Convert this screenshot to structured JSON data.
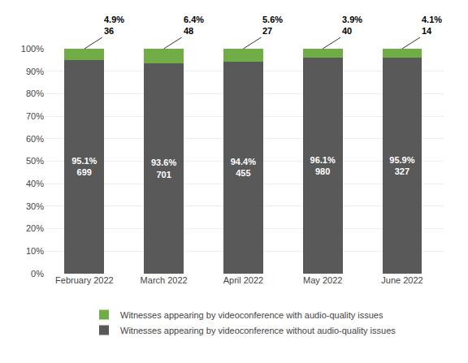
{
  "chart_data": {
    "type": "bar",
    "stacked": true,
    "categories": [
      "February 2022",
      "March 2022",
      "April 2022",
      "May 2022",
      "June 2022"
    ],
    "series": [
      {
        "name": "Witnesses appearing by videoconference without audio-quality issues",
        "color": "#595959",
        "values": [
          95.1,
          93.6,
          94.4,
          96.1,
          95.9
        ],
        "value_labels": [
          "95.1%\n699",
          "93.6%\n701",
          "94.4%\n455",
          "96.1%\n980",
          "95.9%\n327"
        ]
      },
      {
        "name": "Witnesses appearing by videoconference with audio-quality issues",
        "color": "#70AD47",
        "values": [
          4.9,
          6.4,
          5.6,
          3.9,
          4.1
        ],
        "value_labels": [
          "4.9%\n36",
          "6.4%\n48",
          "5.6%\n27",
          "3.9%\n40",
          "4.1%\n14"
        ]
      }
    ],
    "ylim": [
      0,
      100
    ],
    "yticks": [
      {
        "value": 0,
        "label": "0%"
      },
      {
        "value": 10,
        "label": "10%"
      },
      {
        "value": 20,
        "label": "20%"
      },
      {
        "value": 30,
        "label": "30%"
      },
      {
        "value": 40,
        "label": "40%"
      },
      {
        "value": 50,
        "label": "50%"
      },
      {
        "value": 60,
        "label": "60%"
      },
      {
        "value": 70,
        "label": "70%"
      },
      {
        "value": 80,
        "label": "80%"
      },
      {
        "value": 90,
        "label": "90%"
      },
      {
        "value": 100,
        "label": "100%"
      }
    ],
    "grid": true,
    "data_labels": true,
    "legend": "bottom"
  }
}
